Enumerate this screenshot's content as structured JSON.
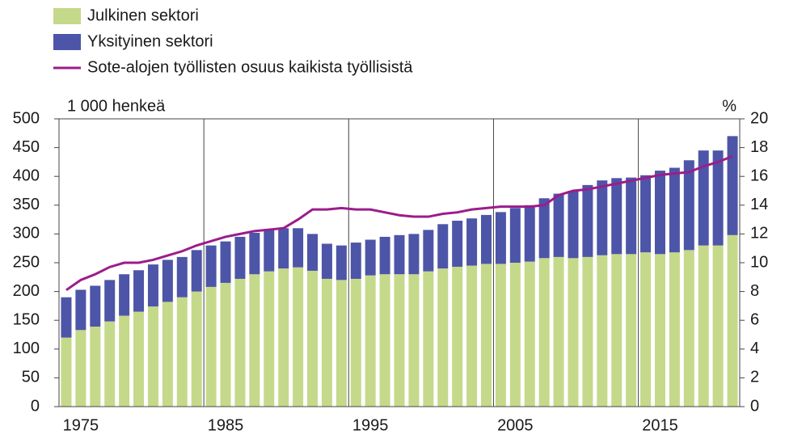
{
  "chart_data": {
    "type": "bar",
    "stacked": true,
    "y_axis_label": "1 000 henkeä",
    "y2_axis_label": "%",
    "categories": [
      null,
      "1975",
      null,
      null,
      null,
      null,
      null,
      null,
      null,
      null,
      null,
      "1985",
      null,
      null,
      null,
      null,
      null,
      null,
      null,
      null,
      null,
      "1995",
      null,
      null,
      null,
      null,
      null,
      null,
      null,
      null,
      null,
      "2005",
      null,
      null,
      null,
      null,
      null,
      null,
      null,
      null,
      null,
      "2015",
      null,
      null,
      null,
      null,
      null
    ],
    "series": [
      {
        "name": "Julkinen sektori",
        "color": "#c5d98a",
        "type": "bar",
        "values": [
          120,
          133,
          139,
          148,
          158,
          165,
          174,
          182,
          190,
          200,
          208,
          215,
          222,
          230,
          235,
          240,
          242,
          236,
          222,
          220,
          222,
          228,
          230,
          230,
          230,
          235,
          240,
          243,
          245,
          248,
          248,
          250,
          252,
          258,
          260,
          258,
          260,
          263,
          265,
          265,
          268,
          265,
          268,
          272,
          280,
          280,
          298
        ]
      },
      {
        "name": "Yksityinen sektori",
        "color": "#4d55a8",
        "type": "bar",
        "values": [
          70,
          70,
          71,
          72,
          72,
          72,
          73,
          73,
          70,
          72,
          72,
          72,
          73,
          72,
          72,
          70,
          68,
          64,
          61,
          60,
          63,
          62,
          65,
          68,
          70,
          72,
          77,
          80,
          82,
          85,
          90,
          95,
          98,
          104,
          110,
          117,
          125,
          130,
          132,
          133,
          134,
          145,
          147,
          156,
          165,
          165,
          172
        ]
      },
      {
        "name": "Sote-alojen työllisten osuus kaikista työllisistä",
        "color": "#9b1d8b",
        "type": "line",
        "axis": "y2",
        "values": [
          8.1,
          8.8,
          9.2,
          9.7,
          10.0,
          10.0,
          10.2,
          10.5,
          10.8,
          11.2,
          11.5,
          11.8,
          12.0,
          12.2,
          12.3,
          12.4,
          13.0,
          13.7,
          13.7,
          13.8,
          13.7,
          13.7,
          13.5,
          13.3,
          13.2,
          13.2,
          13.4,
          13.5,
          13.7,
          13.8,
          13.9,
          13.9,
          13.9,
          14.0,
          14.7,
          15.0,
          15.1,
          15.3,
          15.5,
          15.7,
          15.9,
          16.1,
          16.2,
          16.3,
          16.7,
          17.0,
          17.4
        ]
      }
    ],
    "ylim": [
      0,
      500
    ],
    "yticks": [
      0,
      50,
      100,
      150,
      200,
      250,
      300,
      350,
      400,
      450,
      500
    ],
    "y2lim": [
      0,
      20
    ],
    "y2ticks": [
      0,
      2,
      4,
      6,
      8,
      10,
      12,
      14,
      16,
      18,
      20
    ]
  }
}
